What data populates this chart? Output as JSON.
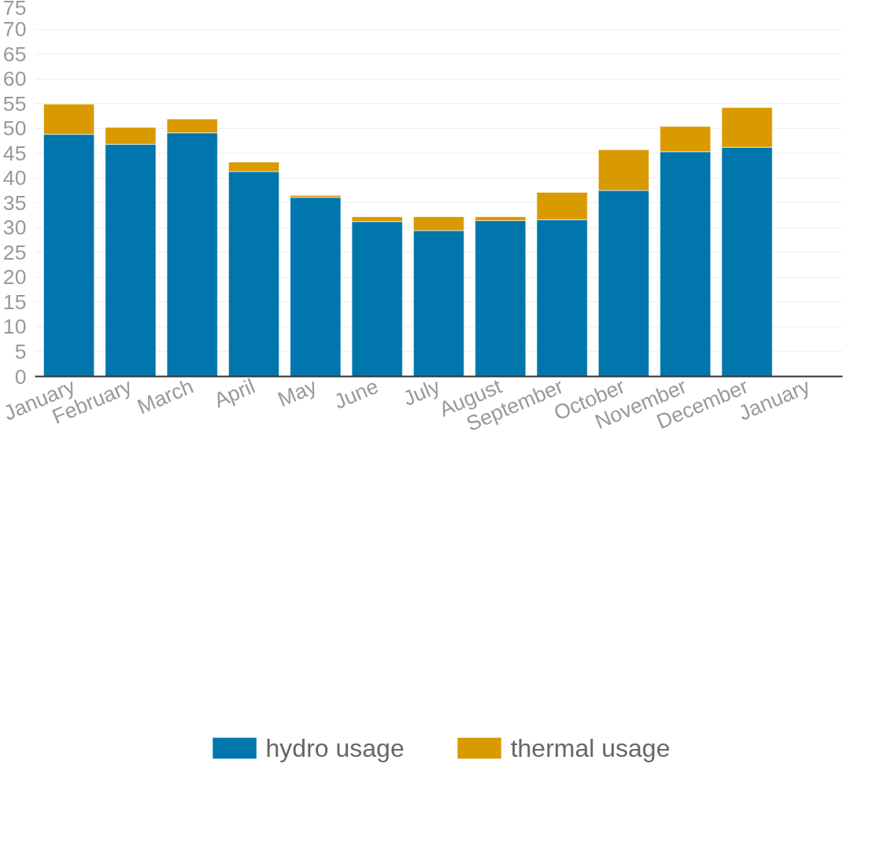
{
  "chart_data": {
    "type": "bar",
    "stacked": true,
    "categories": [
      "January",
      "February",
      "March",
      "April",
      "May",
      "June",
      "July",
      "August",
      "September",
      "October",
      "November",
      "December",
      "January"
    ],
    "series": [
      {
        "name": "hydro usage",
        "color": "#0076ad",
        "values": [
          48.8,
          46.8,
          49.1,
          41.3,
          36.1,
          31.2,
          29.4,
          31.4,
          31.6,
          37.5,
          45.3,
          46.2,
          null
        ]
      },
      {
        "name": "thermal usage",
        "color": "#d99a00",
        "values": [
          6.1,
          3.4,
          2.8,
          1.9,
          0.4,
          1.0,
          2.8,
          0.8,
          5.5,
          8.2,
          5.1,
          8.0,
          null
        ]
      }
    ],
    "ylim": [
      0,
      75
    ],
    "yticks": [
      0,
      5,
      10,
      15,
      20,
      25,
      30,
      35,
      40,
      45,
      50,
      55,
      60,
      65,
      70,
      75
    ],
    "grid": "y",
    "legend": "bottom"
  }
}
